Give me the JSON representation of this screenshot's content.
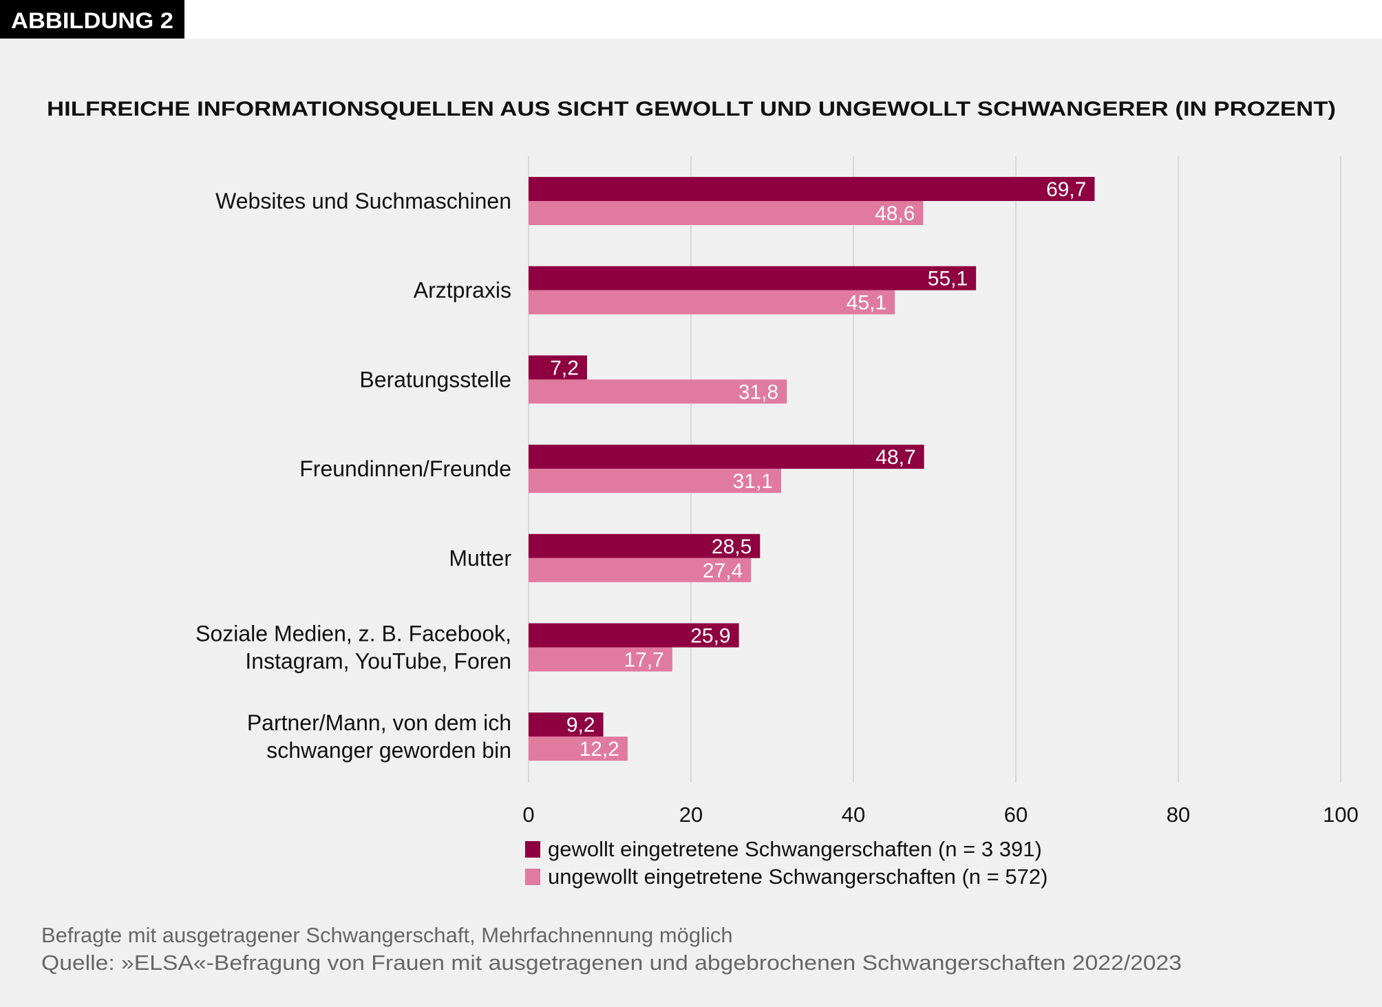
{
  "badge": "ABBILDUNG 2",
  "colors": {
    "gewollt": "#8e0040",
    "ungewollt": "#e07a9e",
    "background": "#f0f0f0",
    "grid": "#d8d8d8"
  },
  "chart_data": {
    "type": "bar",
    "orientation": "horizontal",
    "title": "HILFREICHE INFORMATIONSQUELLEN AUS SICHT GEWOLLT UND UNGEWOLLT SCHWANGERER (IN PROZENT)",
    "categories": [
      [
        "Websites und Suchmaschinen"
      ],
      [
        "Arztpraxis"
      ],
      [
        "Beratungsstelle"
      ],
      [
        "Freundinnen/Freunde"
      ],
      [
        "Mutter"
      ],
      [
        "Soziale Medien, z. B. Facebook,",
        "Instagram, YouTube, Foren"
      ],
      [
        "Partner/Mann, von dem ich",
        "schwanger geworden bin"
      ]
    ],
    "series": [
      {
        "name": "gewollt eingetretene Schwangerschaften (n = 3 391)",
        "values": [
          69.7,
          55.1,
          7.2,
          48.7,
          28.5,
          25.9,
          9.2
        ],
        "labels": [
          "69,7",
          "55,1",
          "7,2",
          "48,7",
          "28,5",
          "25,9",
          "9,2"
        ]
      },
      {
        "name": "ungewollt eingetretene Schwangerschaften (n = 572)",
        "values": [
          48.6,
          45.1,
          31.8,
          31.1,
          27.4,
          17.7,
          12.2
        ],
        "labels": [
          "48,6",
          "45,1",
          "31,8",
          "31,1",
          "27,4",
          "17,7",
          "12,2"
        ]
      }
    ],
    "xlim": [
      0,
      100
    ],
    "xticks": [
      "0",
      "20",
      "40",
      "60",
      "80",
      "100"
    ],
    "grid": true,
    "legend": "bottom"
  },
  "footer": {
    "note": "Befragte mit ausgetragener Schwangerschaft, Mehrfachnennung möglich",
    "source": "Quelle: »ELSA«-Befragung von Frauen mit ausgetragenen und abgebrochenen Schwangerschaften 2022/2023"
  }
}
